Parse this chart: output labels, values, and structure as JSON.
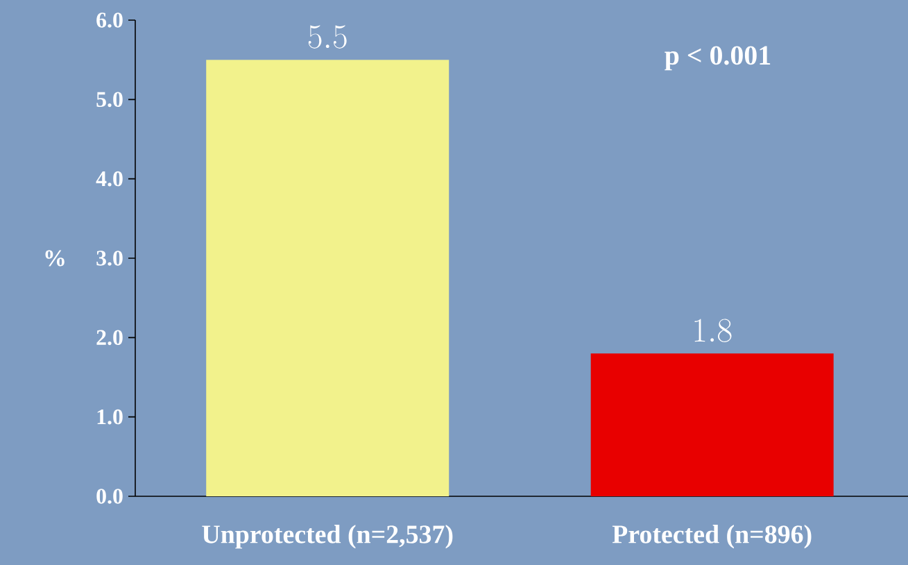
{
  "chart_data": {
    "type": "bar",
    "categories": [
      "Unprotected (n=2,537)",
      "Protected (n=896)"
    ],
    "values": [
      5.5,
      1.8
    ],
    "colors": [
      "#f2f28c",
      "#e80000"
    ],
    "ylabel": "%",
    "ylim": [
      0,
      6
    ],
    "yticks": [
      {
        "value": 0,
        "label": "0.0"
      },
      {
        "value": 1,
        "label": "1.0"
      },
      {
        "value": 2,
        "label": "2.0"
      },
      {
        "value": 3,
        "label": "3.0"
      },
      {
        "value": 4,
        "label": "4.0"
      },
      {
        "value": 5,
        "label": "5.0"
      },
      {
        "value": 6,
        "label": "6.0"
      }
    ],
    "data_labels": true,
    "annotations": [
      "p < 0.001"
    ]
  }
}
